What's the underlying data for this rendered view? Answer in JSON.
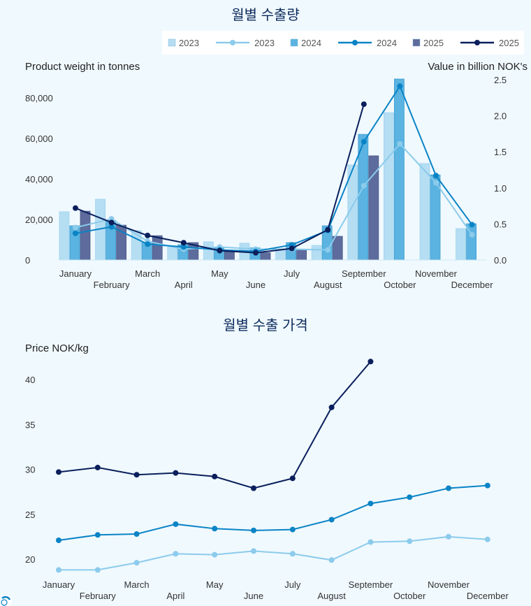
{
  "chart_data": [
    {
      "type": "bar+line",
      "title": "월별 수출량",
      "ylabel_left": "Product weight in tonnes",
      "ylabel_right": "Value in billion NOK's",
      "ylim_left": [
        0,
        80000
      ],
      "ylim_right": [
        0,
        2.5
      ],
      "yticks_left": [
        "0",
        "20,000",
        "40,000",
        "60,000",
        "80,000"
      ],
      "yticks_right": [
        "0.0",
        "0.5",
        "1.0",
        "1.5",
        "2.0",
        "2.5"
      ],
      "legend_position": "top-right",
      "categories": [
        "January",
        "February",
        "March",
        "April",
        "May",
        "June",
        "July",
        "August",
        "September",
        "October",
        "November",
        "December"
      ],
      "bar_series": [
        {
          "name": "2023",
          "color": "#b5def3",
          "values": [
            23800,
            30000,
            14500,
            7000,
            9000,
            8300,
            5200,
            7200,
            46900,
            72700,
            47600,
            15500
          ]
        },
        {
          "name": "2024",
          "color": "#5ab3e0",
          "values": [
            16900,
            19500,
            8600,
            7600,
            5900,
            6000,
            8600,
            16900,
            62000,
            89300,
            42000,
            17900
          ]
        },
        {
          "name": "2025",
          "color": "#5d6c9c",
          "values": [
            24100,
            17200,
            12000,
            8600,
            4100,
            3600,
            5200,
            11700,
            51400,
            null,
            null,
            null
          ]
        }
      ],
      "line_series": [
        {
          "name": "2023",
          "color": "#8ccbec",
          "values": [
            0.45,
            0.57,
            0.26,
            0.15,
            0.18,
            0.15,
            0.15,
            0.14,
            1.03,
            1.61,
            1.07,
            0.35
          ]
        },
        {
          "name": "2024",
          "color": "#0a84c6",
          "values": [
            0.37,
            0.46,
            0.22,
            0.18,
            0.14,
            0.12,
            0.21,
            0.41,
            1.64,
            2.41,
            1.17,
            0.49
          ]
        },
        {
          "name": "2025",
          "color": "#0a1f5c",
          "values": [
            0.72,
            0.52,
            0.34,
            0.24,
            0.13,
            0.1,
            0.16,
            0.42,
            2.16,
            null,
            null,
            null
          ]
        }
      ]
    },
    {
      "type": "line",
      "title": "월별 수출 가격",
      "ylabel": "Price NOK/kg",
      "ylim": [
        18,
        43
      ],
      "yticks": [
        "20",
        "25",
        "30",
        "35",
        "40"
      ],
      "categories": [
        "January",
        "February",
        "March",
        "April",
        "May",
        "June",
        "July",
        "August",
        "September",
        "October",
        "November",
        "December"
      ],
      "series": [
        {
          "color": "#8ccbec",
          "values": [
            18.8,
            18.8,
            19.6,
            20.6,
            20.5,
            20.9,
            20.6,
            19.9,
            21.9,
            22.0,
            22.5,
            22.2
          ]
        },
        {
          "color": "#0a84c6",
          "values": [
            22.1,
            22.7,
            22.8,
            23.9,
            23.4,
            23.2,
            23.3,
            24.4,
            26.2,
            26.9,
            27.9,
            28.2
          ]
        },
        {
          "color": "#0a1f5c",
          "values": [
            29.7,
            30.2,
            29.4,
            29.6,
            29.2,
            27.9,
            29.0,
            36.9,
            42.0,
            null,
            null,
            null
          ]
        }
      ]
    }
  ],
  "colors": {
    "background": "#f0f9fe",
    "title": "#0b2a5c"
  },
  "icons": {
    "corner": "refresh-badge-icon"
  }
}
